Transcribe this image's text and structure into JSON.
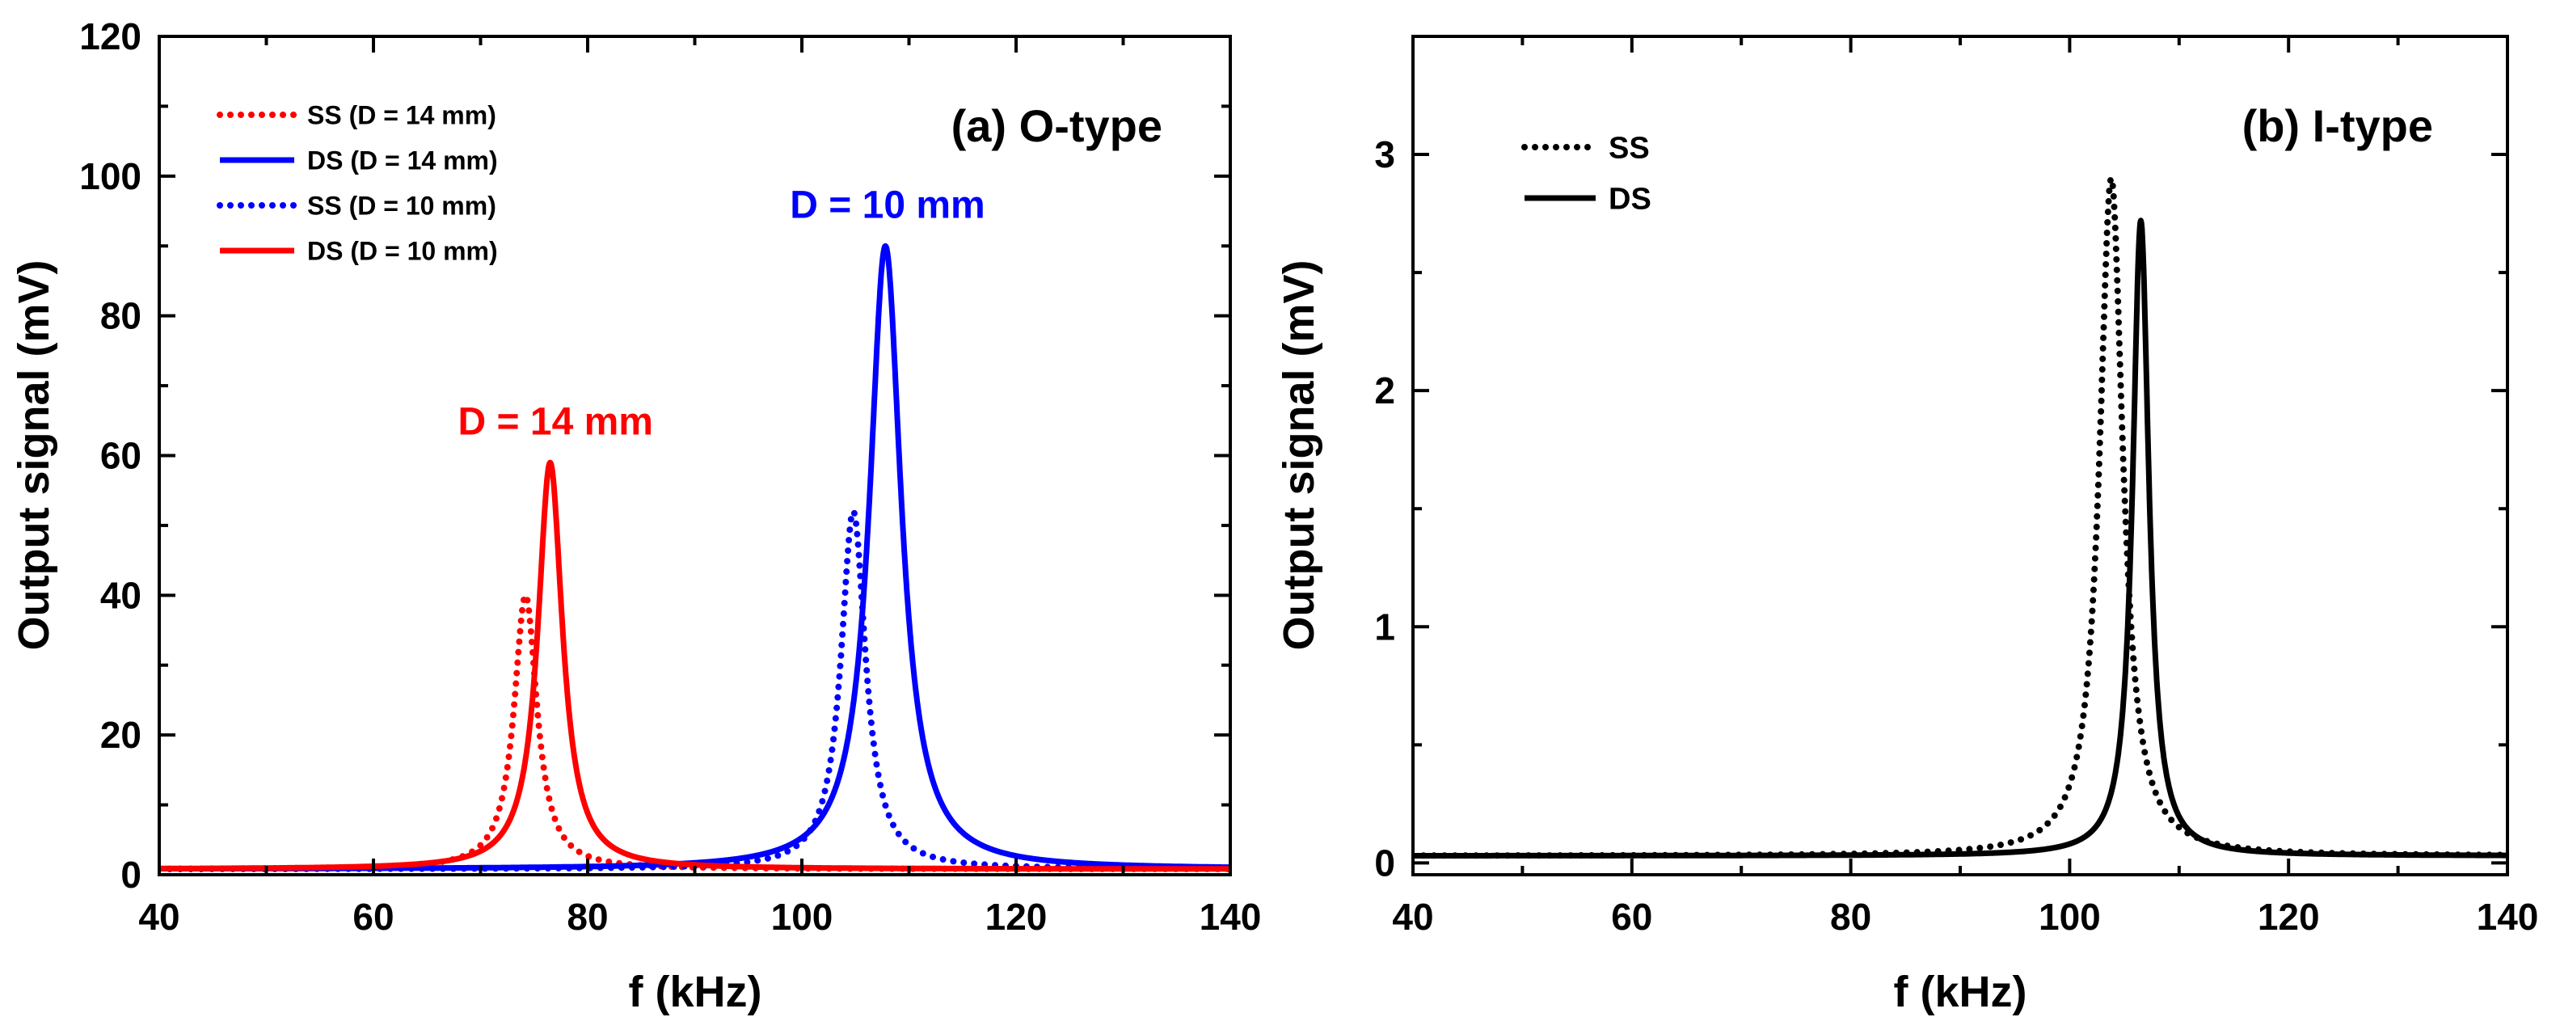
{
  "chart_data": [
    {
      "type": "line",
      "panel": "a",
      "title": "(a) O-type",
      "xlabel": "f (kHz)",
      "ylabel": "Output signal (mV)",
      "xlim": [
        40,
        140
      ],
      "ylim": [
        0,
        120
      ],
      "xticks": [
        40,
        60,
        80,
        100,
        120,
        140
      ],
      "yticks": [
        0,
        20,
        40,
        60,
        80,
        100,
        120
      ],
      "grid": false,
      "legend_position": "top-left",
      "annotations": [
        {
          "text": "D = 14 mm",
          "x": 77,
          "y": 63,
          "color": "#ff0000"
        },
        {
          "text": "D = 10 mm",
          "x": 108,
          "y": 94,
          "color": "#0000ff"
        }
      ],
      "series": [
        {
          "name": "SS (D = 14 mm)",
          "color": "#ff0000",
          "style": "dotted",
          "f0": 74.2,
          "peak": 40,
          "hw": 1.3,
          "base": 0.8,
          "range": [
            40,
            140
          ]
        },
        {
          "name": "DS (D = 14 mm)",
          "color": "#0000ff",
          "style": "solid",
          "f0": 107.8,
          "peak": 90,
          "hw": 1.8,
          "base": 0.8,
          "range": [
            40,
            140
          ]
        },
        {
          "name": "SS (D = 10 mm)",
          "color": "#0000ff",
          "style": "dotted",
          "f0": 104.8,
          "peak": 52,
          "hw": 1.4,
          "base": 0.8,
          "range": [
            40,
            140
          ]
        },
        {
          "name": "DS (D = 10 mm)",
          "color": "#ff0000",
          "style": "solid",
          "f0": 76.5,
          "peak": 59,
          "hw": 1.4,
          "base": 0.8,
          "range": [
            40,
            140
          ]
        }
      ]
    },
    {
      "type": "line",
      "panel": "b",
      "title": "(b) I-type",
      "xlabel": "f (kHz)",
      "ylabel": "Output signal (mV)",
      "xlim": [
        40,
        140
      ],
      "ylim": [
        -0.05,
        3.5
      ],
      "xticks": [
        40,
        60,
        80,
        100,
        120,
        140
      ],
      "yticks": [
        0,
        1,
        2,
        3
      ],
      "grid": false,
      "legend_position": "top-left",
      "series": [
        {
          "name": "SS",
          "color": "#000000",
          "style": "dotted",
          "f0": 103.8,
          "peak": 2.9,
          "hw": 1.3,
          "base": 0.03,
          "range": [
            40,
            140
          ]
        },
        {
          "name": "DS",
          "color": "#000000",
          "style": "solid",
          "f0": 106.5,
          "peak": 2.72,
          "hw": 0.9,
          "base": 0.03,
          "range": [
            40,
            140
          ]
        }
      ]
    }
  ]
}
